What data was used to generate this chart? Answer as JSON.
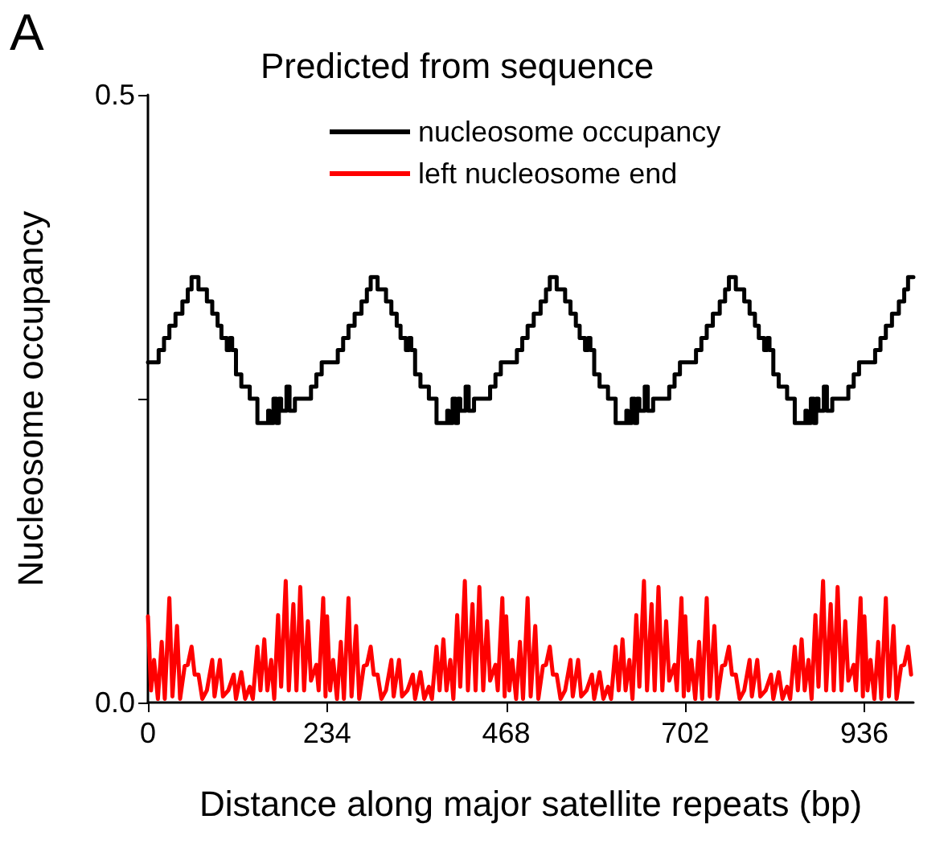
{
  "chart_data": {
    "type": "line",
    "annotations": [
      "A"
    ],
    "legend_title": "Predicted from sequence",
    "xlabel": "Distance along major satellite repeats (bp)",
    "ylabel": "Nucleosome occupancy",
    "xlim": [
      0,
      1000
    ],
    "xticks": [
      0,
      234,
      468,
      702,
      936
    ],
    "ylim": [
      0,
      0.5
    ],
    "yticks": [
      {
        "value": 0,
        "label": "0.0"
      },
      {
        "value": 0.25,
        "label": null
      },
      0.5
    ],
    "grid": false,
    "legend": "top",
    "marker": "none",
    "line_style": "solid",
    "series": [
      {
        "name": "nucleosome occupancy",
        "type": "step",
        "color": "#000000",
        "x": [
          0,
          14,
          21,
          28,
          36,
          45,
          52,
          57,
          66,
          77,
          84,
          91,
          96,
          103,
          107,
          110,
          115,
          122,
          133,
          143,
          157,
          159,
          164,
          168,
          171,
          174,
          181,
          185,
          192,
          202,
          213,
          220,
          227,
          234,
          248,
          255,
          262,
          270,
          279,
          286,
          291,
          300,
          311,
          318,
          325,
          330,
          337,
          341,
          344,
          349,
          356,
          367,
          377,
          391,
          393,
          398,
          402,
          405,
          408,
          415,
          419,
          426,
          436,
          447,
          454,
          461,
          468,
          482,
          489,
          496,
          504,
          513,
          520,
          525,
          534,
          545,
          552,
          559,
          564,
          571,
          575,
          578,
          583,
          590,
          601,
          611,
          625,
          627,
          632,
          636,
          639,
          642,
          649,
          653,
          660,
          670,
          681,
          688,
          695,
          702,
          716,
          723,
          730,
          738,
          747,
          754,
          759,
          768,
          779,
          786,
          793,
          798,
          805,
          809,
          812,
          817,
          824,
          835,
          845,
          859,
          861,
          866,
          870,
          873,
          876,
          883,
          887,
          894,
          904,
          915,
          922,
          929,
          936,
          950,
          957,
          964,
          972,
          981,
          988,
          993,
          1000
        ],
        "values": [
          0.28,
          0.29,
          0.3,
          0.31,
          0.32,
          0.33,
          0.34,
          0.35,
          0.34,
          0.33,
          0.32,
          0.31,
          0.3,
          0.29,
          0.3,
          0.29,
          0.27,
          0.26,
          0.25,
          0.23,
          0.24,
          0.23,
          0.25,
          0.23,
          0.25,
          0.24,
          0.26,
          0.24,
          0.25,
          0.25,
          0.26,
          0.27,
          0.28,
          0.28,
          0.29,
          0.3,
          0.31,
          0.32,
          0.33,
          0.34,
          0.35,
          0.34,
          0.33,
          0.32,
          0.31,
          0.3,
          0.29,
          0.3,
          0.29,
          0.27,
          0.26,
          0.25,
          0.23,
          0.24,
          0.23,
          0.25,
          0.23,
          0.25,
          0.24,
          0.26,
          0.24,
          0.25,
          0.25,
          0.26,
          0.27,
          0.28,
          0.28,
          0.29,
          0.3,
          0.31,
          0.32,
          0.33,
          0.34,
          0.35,
          0.34,
          0.33,
          0.32,
          0.31,
          0.3,
          0.29,
          0.3,
          0.29,
          0.27,
          0.26,
          0.25,
          0.23,
          0.24,
          0.23,
          0.25,
          0.23,
          0.25,
          0.24,
          0.26,
          0.24,
          0.25,
          0.25,
          0.26,
          0.27,
          0.28,
          0.28,
          0.29,
          0.3,
          0.31,
          0.32,
          0.33,
          0.34,
          0.35,
          0.34,
          0.33,
          0.32,
          0.31,
          0.3,
          0.29,
          0.3,
          0.29,
          0.27,
          0.26,
          0.25,
          0.23,
          0.24,
          0.23,
          0.25,
          0.23,
          0.25,
          0.24,
          0.26,
          0.24,
          0.25,
          0.25,
          0.26,
          0.27,
          0.28,
          0.28,
          0.29,
          0.3,
          0.31,
          0.32,
          0.33,
          0.34,
          0.35,
          0.35
        ]
      },
      {
        "name": "left nucleosome end",
        "color": "#ff0000",
        "x": [
          0,
          4,
          8,
          13,
          18,
          22,
          28,
          32,
          38,
          42,
          48,
          52,
          57,
          61,
          66,
          71,
          77,
          84,
          87,
          94,
          98,
          105,
          112,
          115,
          122,
          127,
          133,
          137,
          143,
          147,
          152,
          156,
          161,
          165,
          170,
          174,
          180,
          184,
          190,
          194,
          199,
          204,
          209,
          213,
          220,
          223,
          229,
          232,
          234,
          238,
          242,
          247,
          252,
          256,
          262,
          266,
          272,
          276,
          282,
          286,
          291,
          295,
          300,
          305,
          311,
          318,
          321,
          328,
          332,
          339,
          346,
          349,
          356,
          361,
          367,
          371,
          377,
          381,
          386,
          390,
          395,
          399,
          404,
          408,
          414,
          418,
          424,
          428,
          433,
          438,
          443,
          447,
          454,
          457,
          463,
          466,
          468,
          472,
          476,
          481,
          486,
          490,
          496,
          500,
          506,
          510,
          516,
          520,
          525,
          529,
          534,
          539,
          545,
          552,
          555,
          562,
          566,
          573,
          580,
          583,
          590,
          595,
          601,
          605,
          611,
          615,
          620,
          624,
          629,
          633,
          638,
          642,
          648,
          652,
          658,
          662,
          667,
          672,
          677,
          681,
          688,
          691,
          697,
          700,
          702,
          706,
          710,
          715,
          720,
          724,
          730,
          734,
          740,
          744,
          750,
          754,
          759,
          763,
          768,
          773,
          779,
          786,
          789,
          796,
          800,
          807,
          814,
          817,
          824,
          829,
          835,
          839,
          845,
          849,
          854,
          858,
          863,
          867,
          872,
          876,
          882,
          886,
          892,
          896,
          901,
          906,
          911,
          915,
          922,
          925,
          931,
          934,
          936,
          940,
          944,
          949,
          954,
          958,
          964,
          968,
          974,
          978,
          984,
          988,
          993,
          997
        ],
        "values": [
          0.071,
          0.01,
          0.035,
          0.003,
          0.05,
          0.003,
          0.086,
          0.005,
          0.063,
          0.003,
          0.03,
          0.031,
          0.046,
          0.023,
          0.023,
          0.003,
          0.01,
          0.035,
          0.005,
          0.035,
          0.005,
          0.01,
          0.023,
          0.003,
          0.025,
          0.003,
          0.013,
          0.003,
          0.046,
          0.01,
          0.052,
          0.01,
          0.035,
          0.003,
          0.072,
          0.013,
          0.1,
          0.01,
          0.081,
          0.01,
          0.095,
          0.01,
          0.067,
          0.018,
          0.031,
          0.01,
          0.086,
          0.005,
          0.071,
          0.01,
          0.035,
          0.003,
          0.05,
          0.003,
          0.086,
          0.005,
          0.063,
          0.003,
          0.03,
          0.031,
          0.046,
          0.023,
          0.023,
          0.003,
          0.01,
          0.035,
          0.005,
          0.035,
          0.005,
          0.01,
          0.023,
          0.003,
          0.025,
          0.003,
          0.013,
          0.003,
          0.046,
          0.01,
          0.052,
          0.01,
          0.035,
          0.003,
          0.072,
          0.013,
          0.1,
          0.01,
          0.081,
          0.01,
          0.095,
          0.01,
          0.067,
          0.018,
          0.031,
          0.01,
          0.086,
          0.005,
          0.071,
          0.01,
          0.035,
          0.003,
          0.05,
          0.003,
          0.086,
          0.005,
          0.063,
          0.003,
          0.03,
          0.031,
          0.046,
          0.023,
          0.023,
          0.003,
          0.01,
          0.035,
          0.005,
          0.035,
          0.005,
          0.01,
          0.023,
          0.003,
          0.025,
          0.003,
          0.013,
          0.003,
          0.046,
          0.01,
          0.052,
          0.01,
          0.035,
          0.003,
          0.072,
          0.013,
          0.1,
          0.01,
          0.081,
          0.01,
          0.095,
          0.01,
          0.067,
          0.018,
          0.031,
          0.01,
          0.086,
          0.005,
          0.071,
          0.01,
          0.035,
          0.003,
          0.05,
          0.003,
          0.086,
          0.005,
          0.063,
          0.003,
          0.03,
          0.031,
          0.046,
          0.023,
          0.023,
          0.003,
          0.01,
          0.035,
          0.005,
          0.035,
          0.005,
          0.01,
          0.023,
          0.003,
          0.025,
          0.003,
          0.013,
          0.003,
          0.046,
          0.01,
          0.052,
          0.01,
          0.035,
          0.003,
          0.072,
          0.013,
          0.1,
          0.01,
          0.081,
          0.01,
          0.095,
          0.01,
          0.067,
          0.018,
          0.031,
          0.01,
          0.086,
          0.005,
          0.071,
          0.01,
          0.035,
          0.003,
          0.05,
          0.003,
          0.086,
          0.005,
          0.063,
          0.003,
          0.03,
          0.031,
          0.046,
          0.023
        ]
      }
    ]
  }
}
